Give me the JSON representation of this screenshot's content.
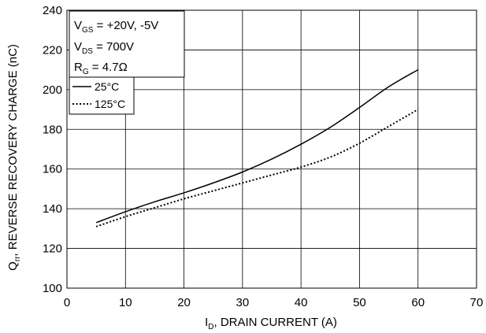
{
  "chart_data": {
    "type": "line",
    "xlabel": {
      "main": "I",
      "sub": "D",
      "rest": ", DRAIN CURRENT (A)"
    },
    "ylabel": {
      "main": "Q",
      "sub": "rr",
      "rest": ", REVERSE RECOVERY CHARGE (nC)"
    },
    "xlim": [
      0,
      70
    ],
    "ylim": [
      100,
      240
    ],
    "xticks": [
      0,
      10,
      20,
      30,
      40,
      50,
      60,
      70
    ],
    "yticks": [
      100,
      120,
      140,
      160,
      180,
      200,
      220,
      240
    ],
    "grid": "horizontal and vertical",
    "conditions": [
      {
        "main": "V",
        "sub": "GS",
        "rest": " = +20V, -5V"
      },
      {
        "main": "V",
        "sub": "DS",
        "rest": " = 700V"
      },
      {
        "main": "R",
        "sub": "G",
        "rest": " = 4.7Ω"
      }
    ],
    "legend_placement": "top-left",
    "series": [
      {
        "name": "25°C",
        "style": "solid",
        "color": "#000000",
        "x": [
          5,
          10,
          15,
          20,
          25,
          30,
          35,
          40,
          45,
          50,
          55,
          60
        ],
        "y": [
          133,
          138.5,
          143.5,
          148,
          153,
          158.5,
          165,
          172.5,
          181,
          191,
          201.5,
          210
        ]
      },
      {
        "name": "125°C",
        "style": "dotted",
        "color": "#000000",
        "x": [
          5,
          10,
          15,
          20,
          25,
          30,
          35,
          40,
          45,
          50,
          55,
          60
        ],
        "y": [
          131,
          136,
          140.5,
          145,
          149,
          153,
          157,
          161,
          166,
          173,
          181.5,
          190
        ]
      }
    ]
  }
}
